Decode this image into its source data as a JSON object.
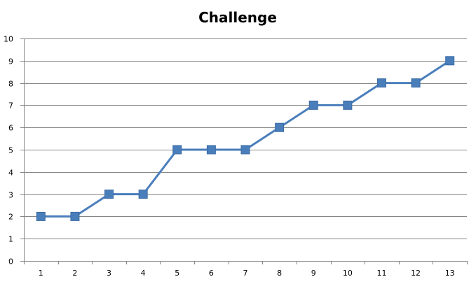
{
  "chart_data": {
    "type": "line",
    "title": "Challenge",
    "xlabel": "",
    "ylabel": "",
    "categories": [
      "1",
      "2",
      "3",
      "4",
      "5",
      "6",
      "7",
      "8",
      "9",
      "10",
      "11",
      "12",
      "13"
    ],
    "series": [
      {
        "values": [
          2,
          2,
          3,
          3,
          5,
          5,
          5,
          6,
          7,
          7,
          8,
          8,
          9
        ],
        "color": "#4a7ebb",
        "marker": "square"
      }
    ],
    "ylim": [
      0,
      10
    ],
    "yticks": [
      "0",
      "1",
      "2",
      "3",
      "4",
      "5",
      "6",
      "7",
      "8",
      "9",
      "10"
    ],
    "grid": true,
    "legend": "none"
  }
}
